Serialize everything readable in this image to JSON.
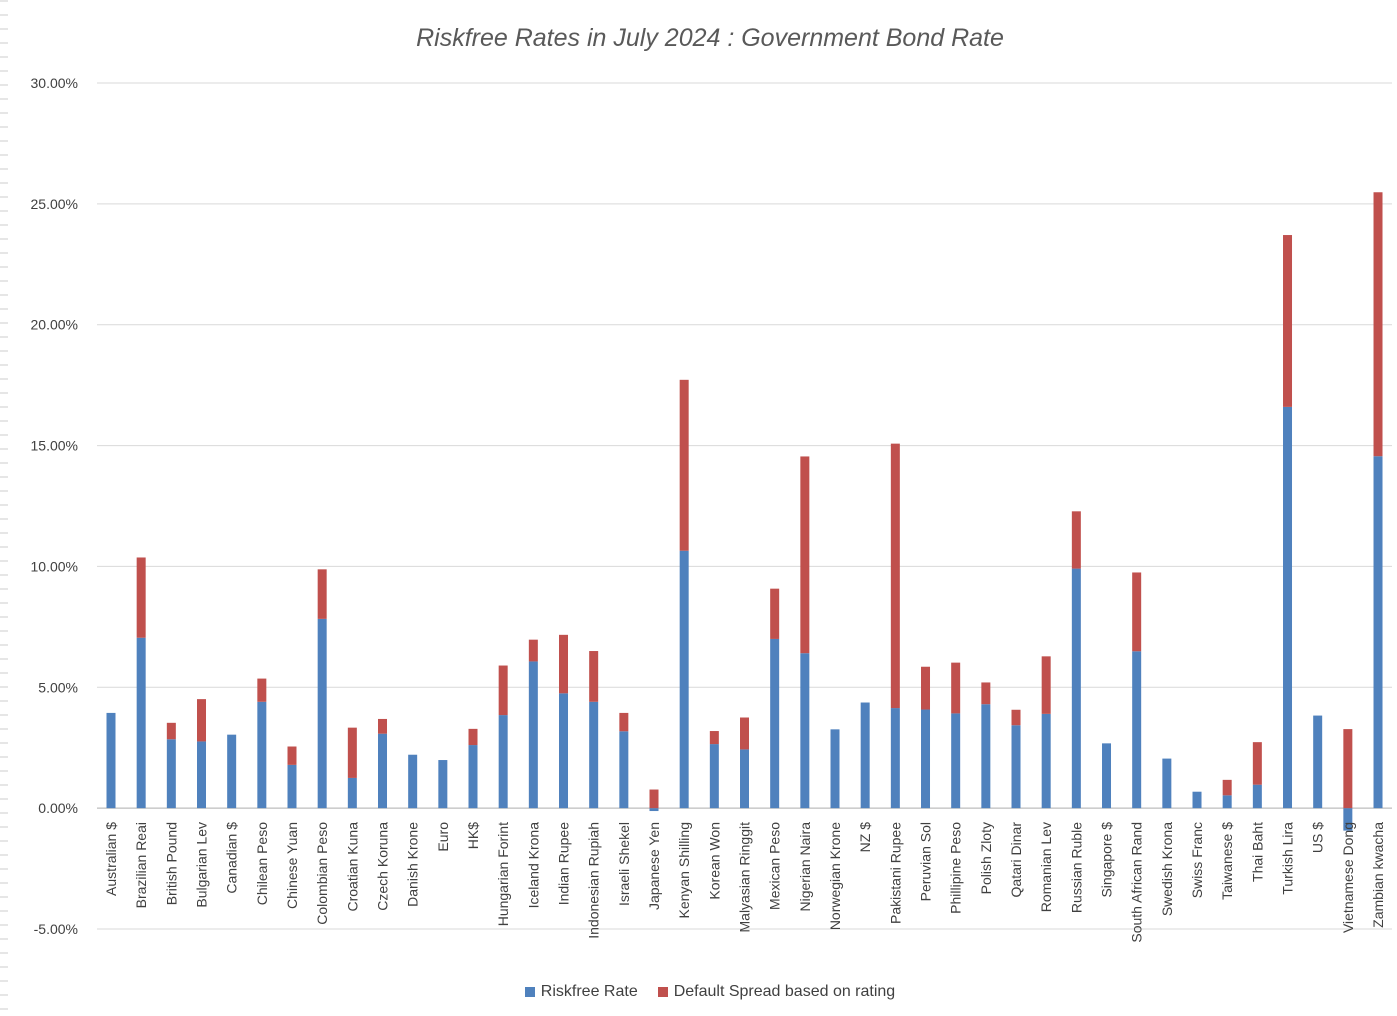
{
  "chart_data": {
    "type": "bar",
    "stacked": true,
    "title": "Riskfree Rates in July 2024 : Government Bond Rate",
    "xlabel": "",
    "ylabel": "",
    "ylim": [
      -5,
      30
    ],
    "yticks": [
      "30.00%",
      "25.00%",
      "20.00%",
      "15.00%",
      "10.00%",
      "5.00%",
      "0.00%",
      "-5.00%"
    ],
    "ytick_values": [
      30,
      25,
      20,
      15,
      10,
      5,
      0,
      -5
    ],
    "grid": true,
    "legend_position": "bottom",
    "categories": [
      "Australian $",
      "Brazilian Reai",
      "British Pound",
      "Bulgarian Lev",
      "Canadian $",
      "Chilean Peso",
      "Chinese Yuan",
      "Colombian Peso",
      "Croatian Kuna",
      "Czech Koruna",
      "Danish Krone",
      "Euro",
      "HK$",
      "Hungarian Forint",
      "Iceland Krona",
      "Indian Rupee",
      "Indonesian Rupiah",
      "Israeli Shekel",
      "Japanese Yen",
      "Kenyan Shilling",
      "Korean Won",
      "Malyasian Ringgit",
      "Mexican Peso",
      "Nigerian Naira",
      "Norwegian Krone",
      "NZ $",
      "Pakistani Rupee",
      "Peruvian Sol",
      "Phillipine Peso",
      "Polish Zloty",
      "Qatari Dinar",
      "Romanian Lev",
      "Russian Ruble",
      "Singapore $",
      "South African Rand",
      "Swedish Krona",
      "Swiss Franc",
      "Taiwanese $",
      "Thai Baht",
      "Turkish Lira",
      "US $",
      "Vietnamese Dong",
      "Zambian kwacha"
    ],
    "series": [
      {
        "name": "Riskfree Rate",
        "color": "#4f81bd",
        "values": [
          3.94,
          7.05,
          2.85,
          2.76,
          3.04,
          4.4,
          1.79,
          7.83,
          1.25,
          3.08,
          2.21,
          1.99,
          2.61,
          3.85,
          6.07,
          4.75,
          4.4,
          3.18,
          -0.12,
          10.65,
          2.65,
          2.43,
          7.0,
          6.41,
          3.26,
          4.37,
          4.14,
          4.08,
          3.92,
          4.3,
          3.43,
          3.9,
          9.91,
          2.68,
          6.49,
          2.05,
          0.68,
          0.53,
          0.97,
          16.6,
          3.83,
          -0.93,
          14.56
        ]
      },
      {
        "name": "Default Spread based on rating",
        "color": "#c0504d",
        "values": [
          0,
          3.32,
          0.68,
          1.75,
          0,
          0.96,
          0.76,
          2.05,
          2.08,
          0.61,
          0,
          0,
          0.67,
          2.05,
          0.9,
          2.42,
          2.1,
          0.76,
          0.77,
          7.07,
          0.54,
          1.32,
          2.08,
          8.14,
          0,
          0,
          10.94,
          1.77,
          2.1,
          0.9,
          0.64,
          2.38,
          2.37,
          0,
          3.26,
          0,
          0,
          0.64,
          1.76,
          7.11,
          0,
          3.27,
          10.92
        ]
      }
    ]
  }
}
